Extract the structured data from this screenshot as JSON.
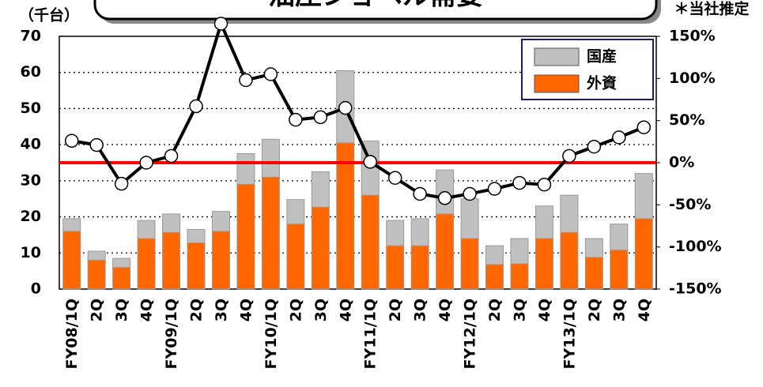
{
  "chart_data": {
    "type": "bar",
    "stacked": true,
    "title": "油圧ショベル需要",
    "y_label": "（千台）",
    "note": "＊当社推定",
    "categories": [
      "FY08/1Q",
      "2Q",
      "3Q",
      "4Q",
      "FY09/1Q",
      "2Q",
      "3Q",
      "4Q",
      "FY10/1Q",
      "2Q",
      "3Q",
      "4Q",
      "FY11/1Q",
      "2Q",
      "3Q",
      "4Q",
      "FY12/1Q",
      "2Q",
      "3Q",
      "4Q",
      "FY13/1Q",
      "2Q",
      "3Q",
      "4Q"
    ],
    "series": [
      {
        "name": "外資",
        "color": "#ff6600",
        "values": [
          16,
          8,
          6,
          14,
          15.7,
          12.8,
          16,
          29,
          31,
          18,
          22.7,
          40.5,
          26,
          12,
          12,
          20.8,
          14,
          6.8,
          7,
          14,
          15.7,
          8.8,
          10.8,
          19.5
        ]
      },
      {
        "name": "国産",
        "color": "#c0c0c0",
        "values": [
          3.5,
          2.5,
          2.5,
          5,
          5.1,
          3.7,
          5.5,
          8.5,
          10.5,
          6.8,
          9.8,
          20,
          15,
          7,
          7.5,
          12.2,
          11,
          5.2,
          7,
          9,
          10.3,
          5.2,
          7.2,
          12.5
        ]
      },
      {
        "type": "line",
        "axis": "y2",
        "color": "#000000",
        "values": [
          26,
          21,
          -25,
          0,
          8,
          67,
          165,
          98,
          105,
          51,
          54,
          65,
          1,
          -18,
          -37,
          -42,
          -37,
          -31,
          -24,
          -26,
          8,
          19,
          30,
          42
        ]
      }
    ],
    "reference_line": {
      "axis": "y2",
      "value": 0,
      "color": "#ff0000"
    },
    "ylim": [
      0,
      70
    ],
    "yticks": [
      0,
      10,
      20,
      30,
      40,
      50,
      60,
      70
    ],
    "y2lim": [
      -150,
      150
    ],
    "y2ticks": [
      {
        "value": 150,
        "label": "150%"
      },
      {
        "value": 100,
        "label": "100%"
      },
      {
        "value": 50,
        "label": "50%"
      },
      {
        "value": 0,
        "label": "0%"
      },
      {
        "value": -50,
        "label": "-50%"
      },
      {
        "value": -100,
        "label": "-100%"
      },
      {
        "value": -150,
        "label": "-150%"
      }
    ],
    "grid": true,
    "legend": "upper right"
  }
}
